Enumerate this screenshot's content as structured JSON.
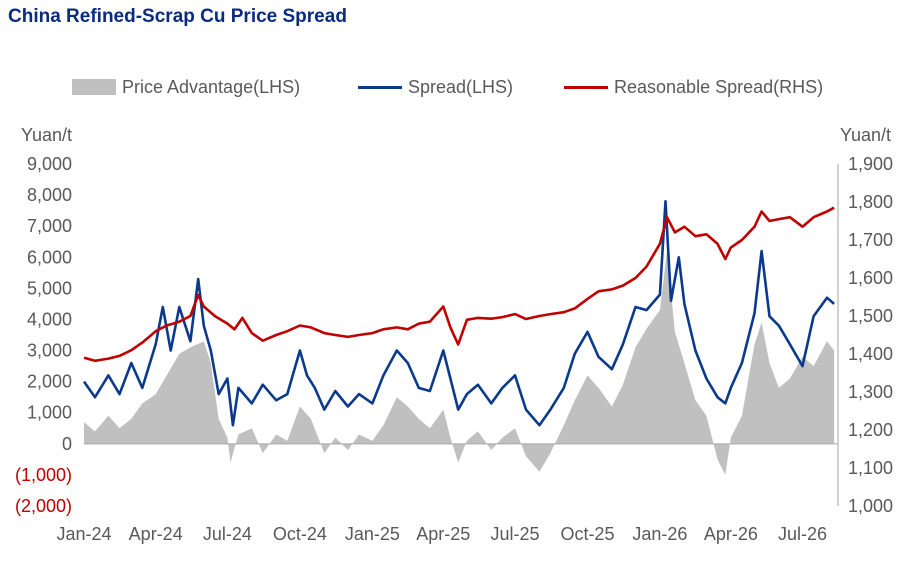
{
  "title": "China Refined-Scrap Cu Price Spread",
  "legend": {
    "advantage": "Price Advantage(LHS)",
    "spread": "Spread(LHS)",
    "reasonable": "Reasonable Spread(RHS)"
  },
  "colors": {
    "title": "#0b2b80",
    "advantage": "#c0c0c0",
    "spread": "#0b3a8c",
    "reasonable": "#c00000",
    "negative_tick": "#c00000",
    "axis_text": "#595959"
  },
  "chart_data": {
    "type": "line",
    "title": "China Refined-Scrap Cu Price Spread",
    "x_unit": "month",
    "x_range": [
      "2024-01",
      "2026-08"
    ],
    "x_tick_labels": [
      "Jan-24",
      "Apr-24",
      "Jul-24",
      "Oct-24",
      "Jan-25",
      "Apr-25",
      "Jul-25",
      "Oct-25",
      "Jan-26",
      "Apr-26",
      "Jul-26"
    ],
    "y_left": {
      "label": "Yuan/t",
      "range": [
        -2000,
        9000
      ],
      "ticks": [
        -2000,
        -1000,
        0,
        1000,
        2000,
        3000,
        4000,
        5000,
        6000,
        7000,
        8000,
        9000
      ],
      "tick_labels": [
        "(2,000)",
        "(1,000)",
        "0",
        "1,000",
        "2,000",
        "3,000",
        "4,000",
        "5,000",
        "6,000",
        "7,000",
        "8,000",
        "9,000"
      ]
    },
    "y_right": {
      "label": "Yuan/t",
      "range": [
        1000,
        1900
      ],
      "ticks": [
        1000,
        1100,
        1200,
        1300,
        1400,
        1500,
        1600,
        1700,
        1800,
        1900
      ],
      "tick_labels": [
        "1,000",
        "1,100",
        "1,200",
        "1,300",
        "1,400",
        "1,500",
        "1,600",
        "1,700",
        "1,800",
        "1,900"
      ]
    },
    "grid": false,
    "legend_position": "top",
    "series": [
      {
        "name": "Price Advantage(LHS)",
        "type": "area",
        "axis": "left",
        "points": [
          [
            "2024-01-01",
            700
          ],
          [
            "2024-01-15",
            400
          ],
          [
            "2024-02-01",
            900
          ],
          [
            "2024-02-15",
            500
          ],
          [
            "2024-03-01",
            800
          ],
          [
            "2024-03-15",
            1300
          ],
          [
            "2024-04-01",
            1600
          ],
          [
            "2024-04-15",
            2200
          ],
          [
            "2024-05-01",
            2900
          ],
          [
            "2024-05-15",
            3100
          ],
          [
            "2024-06-01",
            3300
          ],
          [
            "2024-06-10",
            2600
          ],
          [
            "2024-06-20",
            800
          ],
          [
            "2024-07-01",
            200
          ],
          [
            "2024-07-05",
            -600
          ],
          [
            "2024-07-15",
            300
          ],
          [
            "2024-08-01",
            500
          ],
          [
            "2024-08-15",
            -300
          ],
          [
            "2024-09-01",
            300
          ],
          [
            "2024-09-15",
            100
          ],
          [
            "2024-10-01",
            1200
          ],
          [
            "2024-10-15",
            800
          ],
          [
            "2024-11-01",
            -300
          ],
          [
            "2024-11-15",
            200
          ],
          [
            "2024-12-01",
            -200
          ],
          [
            "2024-12-15",
            300
          ],
          [
            "2025-01-01",
            100
          ],
          [
            "2025-01-15",
            600
          ],
          [
            "2025-02-01",
            1500
          ],
          [
            "2025-02-15",
            1200
          ],
          [
            "2025-03-01",
            800
          ],
          [
            "2025-03-15",
            500
          ],
          [
            "2025-04-01",
            1100
          ],
          [
            "2025-04-10",
            200
          ],
          [
            "2025-04-20",
            -600
          ],
          [
            "2025-05-01",
            100
          ],
          [
            "2025-05-15",
            400
          ],
          [
            "2025-06-01",
            -200
          ],
          [
            "2025-06-15",
            200
          ],
          [
            "2025-07-01",
            500
          ],
          [
            "2025-07-15",
            -400
          ],
          [
            "2025-08-01",
            -900
          ],
          [
            "2025-08-15",
            -300
          ],
          [
            "2025-09-01",
            600
          ],
          [
            "2025-09-15",
            1400
          ],
          [
            "2025-10-01",
            2200
          ],
          [
            "2025-10-15",
            1800
          ],
          [
            "2025-11-01",
            1200
          ],
          [
            "2025-11-15",
            1900
          ],
          [
            "2025-12-01",
            3100
          ],
          [
            "2025-12-15",
            3700
          ],
          [
            "2026-01-01",
            4300
          ],
          [
            "2026-01-10",
            6200
          ],
          [
            "2026-01-20",
            3600
          ],
          [
            "2026-02-01",
            2600
          ],
          [
            "2026-02-15",
            1400
          ],
          [
            "2026-03-01",
            900
          ],
          [
            "2026-03-15",
            -500
          ],
          [
            "2026-03-25",
            -1000
          ],
          [
            "2026-04-01",
            200
          ],
          [
            "2026-04-15",
            900
          ],
          [
            "2026-05-01",
            3200
          ],
          [
            "2026-05-10",
            3900
          ],
          [
            "2026-05-20",
            2600
          ],
          [
            "2026-06-01",
            1800
          ],
          [
            "2026-06-15",
            2100
          ],
          [
            "2026-07-01",
            2800
          ],
          [
            "2026-07-15",
            2500
          ],
          [
            "2026-08-01",
            3300
          ],
          [
            "2026-08-10",
            3000
          ]
        ]
      },
      {
        "name": "Spread(LHS)",
        "type": "line",
        "axis": "left",
        "points": [
          [
            "2024-01-01",
            2000
          ],
          [
            "2024-01-15",
            1500
          ],
          [
            "2024-02-01",
            2200
          ],
          [
            "2024-02-15",
            1600
          ],
          [
            "2024-03-01",
            2600
          ],
          [
            "2024-03-15",
            1800
          ],
          [
            "2024-04-01",
            3200
          ],
          [
            "2024-04-10",
            4400
          ],
          [
            "2024-04-20",
            3000
          ],
          [
            "2024-05-01",
            4400
          ],
          [
            "2024-05-15",
            3300
          ],
          [
            "2024-05-25",
            5300
          ],
          [
            "2024-06-01",
            3800
          ],
          [
            "2024-06-10",
            3000
          ],
          [
            "2024-06-20",
            1600
          ],
          [
            "2024-07-01",
            2100
          ],
          [
            "2024-07-08",
            600
          ],
          [
            "2024-07-15",
            1800
          ],
          [
            "2024-08-01",
            1300
          ],
          [
            "2024-08-15",
            1900
          ],
          [
            "2024-09-01",
            1400
          ],
          [
            "2024-09-15",
            1600
          ],
          [
            "2024-10-01",
            3000
          ],
          [
            "2024-10-10",
            2200
          ],
          [
            "2024-10-20",
            1800
          ],
          [
            "2024-11-01",
            1100
          ],
          [
            "2024-11-15",
            1700
          ],
          [
            "2024-12-01",
            1200
          ],
          [
            "2024-12-15",
            1600
          ],
          [
            "2025-01-01",
            1300
          ],
          [
            "2025-01-15",
            2200
          ],
          [
            "2025-02-01",
            3000
          ],
          [
            "2025-02-15",
            2600
          ],
          [
            "2025-03-01",
            1800
          ],
          [
            "2025-03-15",
            1700
          ],
          [
            "2025-04-01",
            3000
          ],
          [
            "2025-04-10",
            2100
          ],
          [
            "2025-04-20",
            1100
          ],
          [
            "2025-05-01",
            1600
          ],
          [
            "2025-05-15",
            1900
          ],
          [
            "2025-06-01",
            1300
          ],
          [
            "2025-06-15",
            1800
          ],
          [
            "2025-07-01",
            2200
          ],
          [
            "2025-07-15",
            1100
          ],
          [
            "2025-08-01",
            600
          ],
          [
            "2025-08-15",
            1100
          ],
          [
            "2025-09-01",
            1800
          ],
          [
            "2025-09-15",
            2900
          ],
          [
            "2025-10-01",
            3600
          ],
          [
            "2025-10-15",
            2800
          ],
          [
            "2025-11-01",
            2400
          ],
          [
            "2025-11-15",
            3200
          ],
          [
            "2025-12-01",
            4400
          ],
          [
            "2025-12-15",
            4300
          ],
          [
            "2026-01-01",
            4800
          ],
          [
            "2026-01-08",
            7800
          ],
          [
            "2026-01-15",
            4600
          ],
          [
            "2026-01-25",
            6000
          ],
          [
            "2026-02-01",
            4500
          ],
          [
            "2026-02-15",
            3000
          ],
          [
            "2026-03-01",
            2100
          ],
          [
            "2026-03-15",
            1500
          ],
          [
            "2026-03-25",
            1300
          ],
          [
            "2026-04-01",
            1800
          ],
          [
            "2026-04-15",
            2600
          ],
          [
            "2026-05-01",
            4200
          ],
          [
            "2026-05-10",
            6200
          ],
          [
            "2026-05-20",
            4100
          ],
          [
            "2026-06-01",
            3800
          ],
          [
            "2026-06-15",
            3200
          ],
          [
            "2026-07-01",
            2500
          ],
          [
            "2026-07-15",
            4100
          ],
          [
            "2026-08-01",
            4700
          ],
          [
            "2026-08-10",
            4500
          ]
        ]
      },
      {
        "name": "Reasonable Spread(RHS)",
        "type": "line",
        "axis": "right",
        "points": [
          [
            "2024-01-01",
            1390
          ],
          [
            "2024-01-15",
            1382
          ],
          [
            "2024-02-01",
            1388
          ],
          [
            "2024-02-15",
            1395
          ],
          [
            "2024-03-01",
            1410
          ],
          [
            "2024-03-15",
            1430
          ],
          [
            "2024-04-01",
            1460
          ],
          [
            "2024-04-15",
            1475
          ],
          [
            "2024-05-01",
            1485
          ],
          [
            "2024-05-15",
            1500
          ],
          [
            "2024-05-25",
            1555
          ],
          [
            "2024-06-01",
            1525
          ],
          [
            "2024-06-15",
            1500
          ],
          [
            "2024-07-01",
            1480
          ],
          [
            "2024-07-10",
            1465
          ],
          [
            "2024-07-20",
            1495
          ],
          [
            "2024-08-01",
            1455
          ],
          [
            "2024-08-15",
            1435
          ],
          [
            "2024-09-01",
            1450
          ],
          [
            "2024-09-15",
            1460
          ],
          [
            "2024-10-01",
            1475
          ],
          [
            "2024-10-15",
            1470
          ],
          [
            "2024-11-01",
            1455
          ],
          [
            "2024-11-15",
            1450
          ],
          [
            "2024-12-01",
            1445
          ],
          [
            "2024-12-15",
            1450
          ],
          [
            "2025-01-01",
            1455
          ],
          [
            "2025-01-15",
            1465
          ],
          [
            "2025-02-01",
            1470
          ],
          [
            "2025-02-15",
            1465
          ],
          [
            "2025-03-01",
            1480
          ],
          [
            "2025-03-15",
            1485
          ],
          [
            "2025-04-01",
            1525
          ],
          [
            "2025-04-10",
            1470
          ],
          [
            "2025-04-20",
            1425
          ],
          [
            "2025-05-01",
            1490
          ],
          [
            "2025-05-15",
            1495
          ],
          [
            "2025-06-01",
            1493
          ],
          [
            "2025-06-15",
            1497
          ],
          [
            "2025-07-01",
            1505
          ],
          [
            "2025-07-15",
            1492
          ],
          [
            "2025-08-01",
            1500
          ],
          [
            "2025-08-15",
            1505
          ],
          [
            "2025-09-01",
            1510
          ],
          [
            "2025-09-15",
            1520
          ],
          [
            "2025-10-01",
            1545
          ],
          [
            "2025-10-15",
            1565
          ],
          [
            "2025-11-01",
            1570
          ],
          [
            "2025-11-15",
            1580
          ],
          [
            "2025-12-01",
            1600
          ],
          [
            "2025-12-15",
            1630
          ],
          [
            "2026-01-01",
            1690
          ],
          [
            "2026-01-10",
            1760
          ],
          [
            "2026-01-20",
            1720
          ],
          [
            "2026-02-01",
            1735
          ],
          [
            "2026-02-15",
            1710
          ],
          [
            "2026-03-01",
            1715
          ],
          [
            "2026-03-15",
            1690
          ],
          [
            "2026-03-25",
            1650
          ],
          [
            "2026-04-01",
            1680
          ],
          [
            "2026-04-15",
            1700
          ],
          [
            "2026-05-01",
            1735
          ],
          [
            "2026-05-10",
            1775
          ],
          [
            "2026-05-20",
            1750
          ],
          [
            "2026-06-01",
            1755
          ],
          [
            "2026-06-15",
            1760
          ],
          [
            "2026-07-01",
            1735
          ],
          [
            "2026-07-15",
            1760
          ],
          [
            "2026-08-01",
            1775
          ],
          [
            "2026-08-10",
            1785
          ]
        ]
      }
    ]
  }
}
